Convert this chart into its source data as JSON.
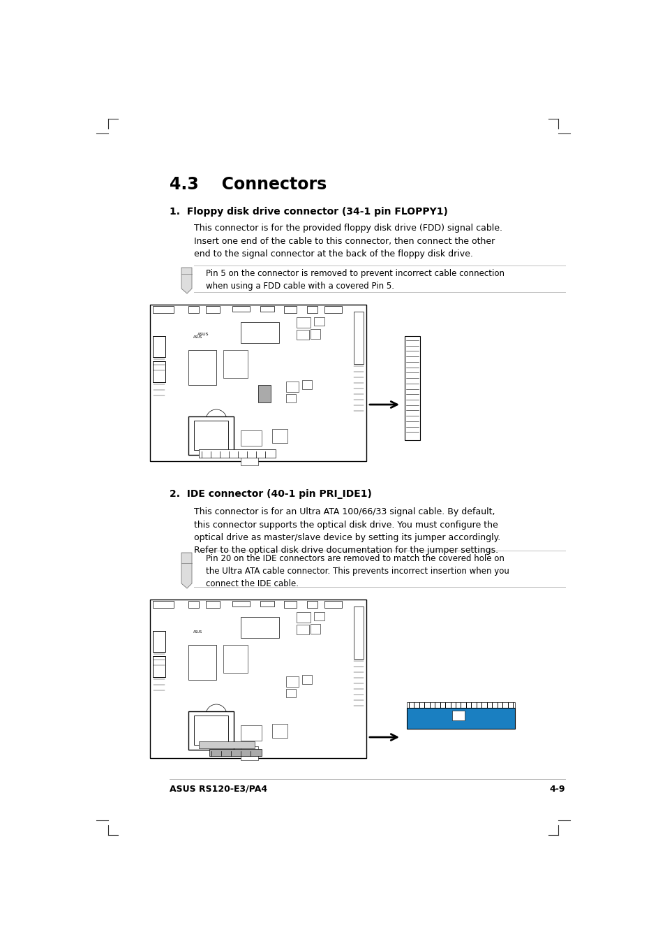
{
  "bg_color": "#ffffff",
  "text_color": "#000000",
  "page_width": 9.54,
  "page_height": 13.51,
  "dpi": 100,
  "section_title": "4.3    Connectors",
  "item1_heading": "1.  Floppy disk drive connector (34-1 pin FLOPPY1)",
  "item1_body": "This connector is for the provided floppy disk drive (FDD) signal cable.\nInsert one end of the cable to this connector, then connect the other\nend to the signal connector at the back of the floppy disk drive.",
  "note1_text": "Pin 5 on the connector is removed to prevent incorrect cable connection\nwhen using a FDD cable with a covered Pin 5.",
  "item2_heading": "2.  IDE connector (40-1 pin PRI_IDE1)",
  "item2_body": "This connector is for an Ultra ATA 100/66/33 signal cable. By default,\nthis connector supports the optical disk drive. You must configure the\noptical drive as master/slave device by setting its jumper accordingly.\nRefer to the optical disk drive documentation for the jumper settings.",
  "note2_text": "Pin 20 on the IDE connectors are removed to match the covered hole on\nthe Ultra ATA cable connector. This prevents incorrect insertion when you\nconnect the IDE cable.",
  "footer_left": "ASUS RS120-E3/PA4",
  "footer_right": "4-9",
  "blue_color": "#1a7fc1",
  "note_line_color": "#c0c0c0",
  "gray_color": "#888888"
}
